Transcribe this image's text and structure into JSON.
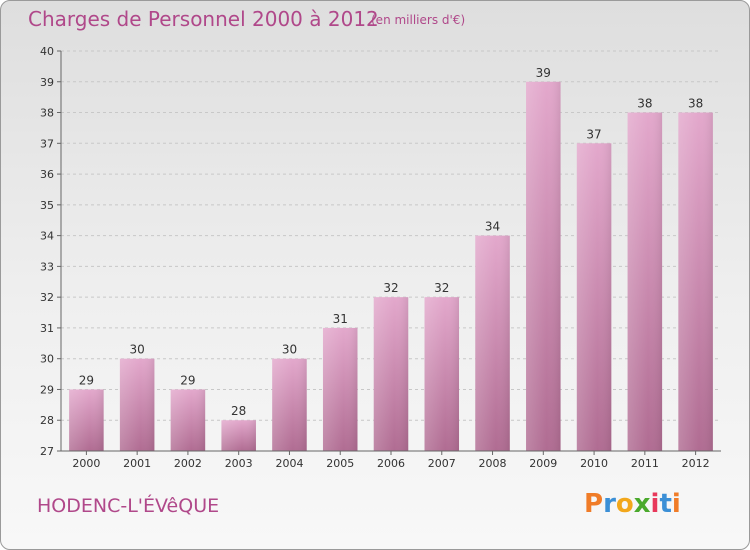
{
  "header": {
    "title": "Charges de Personnel 2000 à 2012",
    "unit_note": "(en milliers d'€)"
  },
  "footer": {
    "commune": "HODENC-L'ÉVêQUE",
    "logo_text": "Proxiti"
  },
  "colors": {
    "title": "#b0488a",
    "bar_top": "#e3a8cc",
    "bar_bottom": "#b06c92",
    "logo_letters": [
      "#f07c28",
      "#3b8fd6",
      "#f2a71b",
      "#4aa92c",
      "#e8385b",
      "#3b8fd6",
      "#f07c28"
    ]
  },
  "chart_data": {
    "type": "bar",
    "categories": [
      "2000",
      "2001",
      "2002",
      "2003",
      "2004",
      "2005",
      "2006",
      "2007",
      "2008",
      "2009",
      "2010",
      "2011",
      "2012"
    ],
    "values": [
      29,
      30,
      29,
      28,
      30,
      31,
      32,
      32,
      34,
      39,
      37,
      38,
      38
    ],
    "title": "Charges de Personnel 2000 à 2012",
    "xlabel": "",
    "ylabel": "",
    "ylim": [
      27,
      40
    ],
    "yticks": [
      27,
      28,
      29,
      30,
      31,
      32,
      33,
      34,
      35,
      36,
      37,
      38,
      39,
      40
    ],
    "grid": true,
    "data_labels": true
  }
}
